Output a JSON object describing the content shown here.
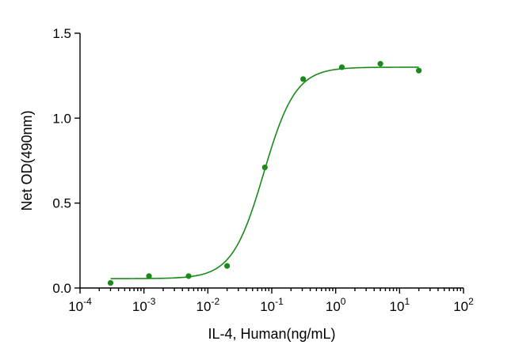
{
  "chart_data": {
    "type": "scatter",
    "title": "",
    "xlabel": "IL-4, Human(ng/mL)",
    "ylabel": "Net OD(490nm)",
    "x_scale": "log",
    "xlim": [
      0.0001,
      100
    ],
    "ylim": [
      0,
      1.5
    ],
    "grid": false,
    "legend": "none",
    "x_ticks": [
      {
        "base": "10",
        "exp": "-4",
        "value": 0.0001
      },
      {
        "base": "10",
        "exp": "-3",
        "value": 0.001
      },
      {
        "base": "10",
        "exp": "-2",
        "value": 0.01
      },
      {
        "base": "10",
        "exp": "-1",
        "value": 0.1
      },
      {
        "base": "10",
        "exp": "0",
        "value": 1
      },
      {
        "base": "10",
        "exp": "1",
        "value": 10
      },
      {
        "base": "10",
        "exp": "2",
        "value": 100
      }
    ],
    "y_ticks": [
      {
        "label": "0.0",
        "value": 0.0
      },
      {
        "label": "0.5",
        "value": 0.5
      },
      {
        "label": "1.0",
        "value": 1.0
      },
      {
        "label": "1.5",
        "value": 1.5
      }
    ],
    "series": [
      {
        "color": "#1a8a1a",
        "points": [
          {
            "x": 0.0003,
            "y": 0.03
          },
          {
            "x": 0.0012,
            "y": 0.07
          },
          {
            "x": 0.005,
            "y": 0.07
          },
          {
            "x": 0.02,
            "y": 0.13
          },
          {
            "x": 0.078,
            "y": 0.71
          },
          {
            "x": 0.31,
            "y": 1.23
          },
          {
            "x": 1.25,
            "y": 1.3
          },
          {
            "x": 5,
            "y": 1.32
          },
          {
            "x": 20,
            "y": 1.28
          }
        ],
        "fit": {
          "model": "4PL",
          "bottom": 0.055,
          "top": 1.3,
          "ec50": 0.075,
          "hill": 1.75,
          "x_range": [
            0.0003,
            20
          ]
        }
      }
    ]
  }
}
